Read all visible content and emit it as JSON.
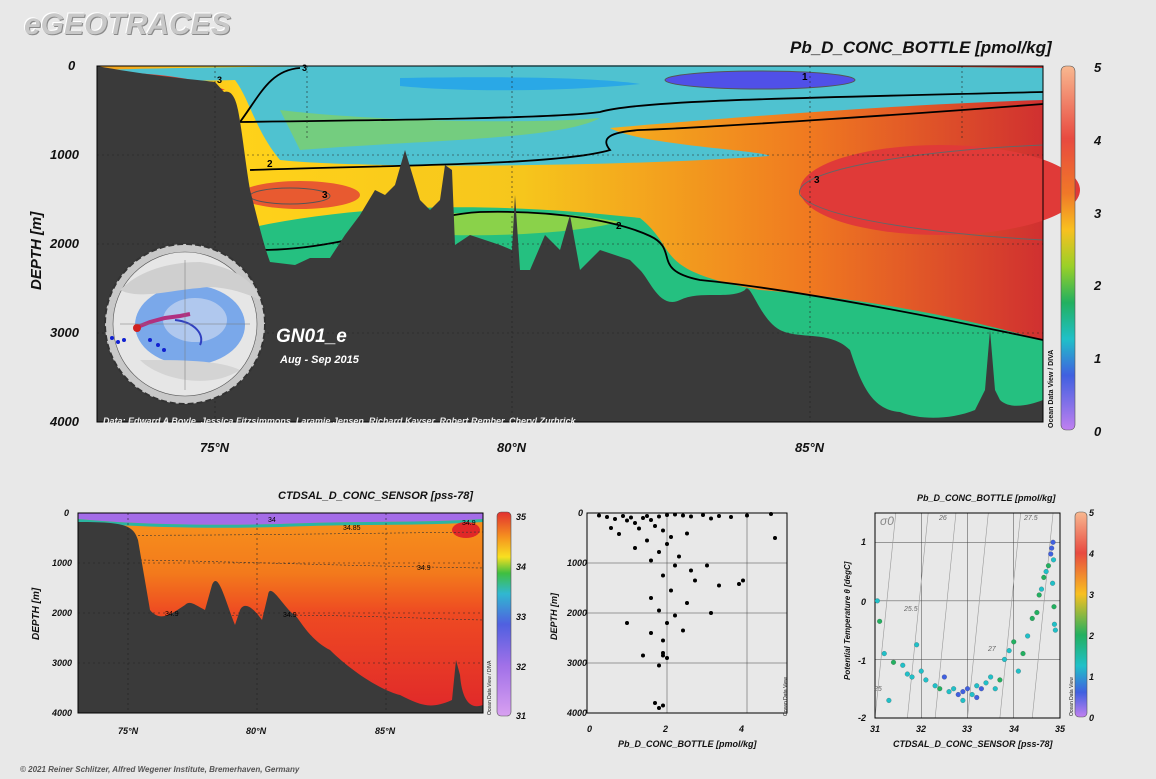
{
  "logo": "eGEOTRACES",
  "footer": "© 2021 Reiner Schlitzer, Alfred Wegener Institute, Bremerhaven, Germany",
  "colors": {
    "background": "#e8e8e8",
    "bathymetry": "#3a3a3a",
    "contour": "#000000"
  },
  "main_section": {
    "title": "Pb_D_CONC_BOTTLE [pmol/kg]",
    "ylabel": "DEPTH [m]",
    "y_ticks": [
      "0",
      "1000",
      "2000",
      "3000",
      "4000"
    ],
    "x_ticks": [
      "75°N",
      "80°N",
      "85°N"
    ],
    "colorbar_ticks": [
      "5",
      "4",
      "3",
      "2",
      "1",
      "0"
    ],
    "watermark": "Ocean Data View / DIVA",
    "cruise": "GN01_e",
    "dates": "Aug - Sep 2015",
    "credits": "Data: Edward A Boyle, Jessica Fitzsimmons, Laramie Jensen, Richard Kayser, Robert Rember, Cheryl Zurbrick",
    "contour_labels": [
      "3",
      "3",
      "1",
      "2",
      "3",
      "3",
      "2"
    ]
  },
  "salinity_section": {
    "title": "CTDSAL_D_CONC_SENSOR [pss-78]",
    "ylabel": "DEPTH [m]",
    "y_ticks": [
      "0",
      "1000",
      "2000",
      "3000",
      "4000"
    ],
    "x_ticks": [
      "75°N",
      "80°N",
      "85°N"
    ],
    "colorbar_ticks": [
      "35",
      "34",
      "33",
      "32",
      "31"
    ],
    "watermark": "Ocean Data View / DIVA",
    "contour_labels": [
      "34",
      "34.85",
      "34.9",
      "34.9",
      "34.9",
      "34.9"
    ]
  },
  "chart_data": [
    {
      "type": "scatter",
      "title": "",
      "xlabel": "Pb_D_CONC_BOTTLE [pmol/kg]",
      "ylabel": "DEPTH [m]",
      "xlim": [
        0,
        5
      ],
      "ylim": [
        4000,
        0
      ],
      "x_ticks": [
        "0",
        "2",
        "4"
      ],
      "y_ticks": [
        "0",
        "1000",
        "2000",
        "3000",
        "4000"
      ],
      "watermark": "Ocean Data View",
      "points": [
        [
          0.3,
          50
        ],
        [
          0.5,
          80
        ],
        [
          0.7,
          120
        ],
        [
          0.9,
          60
        ],
        [
          1.0,
          150
        ],
        [
          1.1,
          90
        ],
        [
          1.2,
          200
        ],
        [
          1.4,
          100
        ],
        [
          1.5,
          60
        ],
        [
          1.6,
          140
        ],
        [
          1.8,
          70
        ],
        [
          2.0,
          40
        ],
        [
          2.2,
          30
        ],
        [
          2.4,
          50
        ],
        [
          2.6,
          70
        ],
        [
          2.9,
          40
        ],
        [
          3.1,
          110
        ],
        [
          3.3,
          60
        ],
        [
          3.6,
          80
        ],
        [
          4.0,
          50
        ],
        [
          4.6,
          20
        ],
        [
          4.7,
          500
        ],
        [
          0.6,
          300
        ],
        [
          0.8,
          420
        ],
        [
          1.3,
          310
        ],
        [
          1.7,
          260
        ],
        [
          1.9,
          350
        ],
        [
          2.1,
          480
        ],
        [
          2.5,
          410
        ],
        [
          1.5,
          550
        ],
        [
          2.0,
          620
        ],
        [
          1.2,
          700
        ],
        [
          1.8,
          780
        ],
        [
          2.3,
          870
        ],
        [
          1.6,
          950
        ],
        [
          2.2,
          1050
        ],
        [
          1.9,
          1250
        ],
        [
          2.6,
          1150
        ],
        [
          2.7,
          1350
        ],
        [
          3.0,
          1050
        ],
        [
          3.3,
          1450
        ],
        [
          3.8,
          1420
        ],
        [
          3.9,
          1350
        ],
        [
          2.1,
          1550
        ],
        [
          1.6,
          1700
        ],
        [
          2.5,
          1800
        ],
        [
          1.8,
          1950
        ],
        [
          2.2,
          2050
        ],
        [
          3.1,
          2000
        ],
        [
          2.0,
          2200
        ],
        [
          1.0,
          2200
        ],
        [
          1.6,
          2400
        ],
        [
          2.4,
          2350
        ],
        [
          1.9,
          2550
        ],
        [
          1.9,
          2800
        ],
        [
          1.9,
          2850
        ],
        [
          1.4,
          2850
        ],
        [
          2.0,
          2900
        ],
        [
          1.8,
          3050
        ],
        [
          1.7,
          3800
        ],
        [
          1.9,
          3850
        ],
        [
          1.8,
          3900
        ]
      ]
    },
    {
      "type": "scatter",
      "title": "Pb_D_CONC_BOTTLE [pmol/kg]",
      "xlabel": "CTDSAL_D_CONC_SENSOR [pss-78]",
      "ylabel": "Potential Temperature θ [degC]",
      "xlim": [
        31,
        35
      ],
      "ylim": [
        -2,
        1.5
      ],
      "x_ticks": [
        "31",
        "32",
        "33",
        "34",
        "35"
      ],
      "y_ticks": [
        "1",
        "0",
        "-1",
        "-2"
      ],
      "colorbar_ticks": [
        "5",
        "4",
        "3",
        "2",
        "1",
        "0"
      ],
      "density_label": "σ0",
      "isopycnal_labels": [
        "26",
        "27.5",
        "25.5",
        "27",
        "25"
      ],
      "watermark": "Ocean Data View",
      "points": [
        [
          31.05,
          0.0,
          2.0
        ],
        [
          31.1,
          -0.35,
          3.0
        ],
        [
          31.2,
          -0.9,
          1.8
        ],
        [
          31.4,
          -1.05,
          2.5
        ],
        [
          31.6,
          -1.1,
          2.0
        ],
        [
          31.7,
          -1.25,
          2.2
        ],
        [
          31.8,
          -1.3,
          1.5
        ],
        [
          31.9,
          -0.75,
          2.0
        ],
        [
          32.0,
          -1.2,
          1.7
        ],
        [
          32.1,
          -1.35,
          2.4
        ],
        [
          32.3,
          -1.45,
          1.9
        ],
        [
          32.4,
          -1.5,
          2.8
        ],
        [
          32.5,
          -1.3,
          1.3
        ],
        [
          32.6,
          -1.55,
          1.6
        ],
        [
          32.7,
          -1.5,
          2.1
        ],
        [
          32.8,
          -1.6,
          1.0
        ],
        [
          32.9,
          -1.55,
          1.4
        ],
        [
          33.0,
          -1.5,
          1.2
        ],
        [
          33.1,
          -1.6,
          1.8
        ],
        [
          33.2,
          -1.45,
          2.3
        ],
        [
          33.3,
          -1.5,
          1.1
        ],
        [
          33.4,
          -1.4,
          1.7
        ],
        [
          33.5,
          -1.3,
          2.0
        ],
        [
          33.6,
          -1.5,
          1.5
        ],
        [
          33.7,
          -1.35,
          2.6
        ],
        [
          33.8,
          -1.0,
          2.2
        ],
        [
          33.9,
          -0.85,
          1.9
        ],
        [
          34.0,
          -0.7,
          2.8
        ],
        [
          34.1,
          -1.2,
          2.4
        ],
        [
          34.2,
          -0.9,
          3.0
        ],
        [
          34.3,
          -0.6,
          2.3
        ],
        [
          34.4,
          -0.3,
          2.5
        ],
        [
          34.5,
          -0.2,
          3.1
        ],
        [
          34.55,
          0.1,
          2.7
        ],
        [
          34.6,
          0.2,
          2.2
        ],
        [
          34.65,
          0.4,
          2.9
        ],
        [
          34.7,
          0.5,
          1.9
        ],
        [
          34.75,
          0.6,
          2.6
        ],
        [
          34.8,
          0.8,
          1.3
        ],
        [
          34.82,
          0.9,
          0.8
        ],
        [
          34.85,
          1.0,
          1.1
        ],
        [
          34.88,
          -0.4,
          2.1
        ],
        [
          34.9,
          -0.5,
          2.4
        ],
        [
          34.87,
          -0.1,
          2.6
        ],
        [
          34.84,
          0.3,
          1.6
        ],
        [
          34.86,
          0.7,
          2.0
        ],
        [
          32.9,
          -1.7,
          1.9
        ],
        [
          33.2,
          -1.65,
          1.3
        ],
        [
          31.3,
          -1.7,
          2.0
        ]
      ]
    }
  ]
}
